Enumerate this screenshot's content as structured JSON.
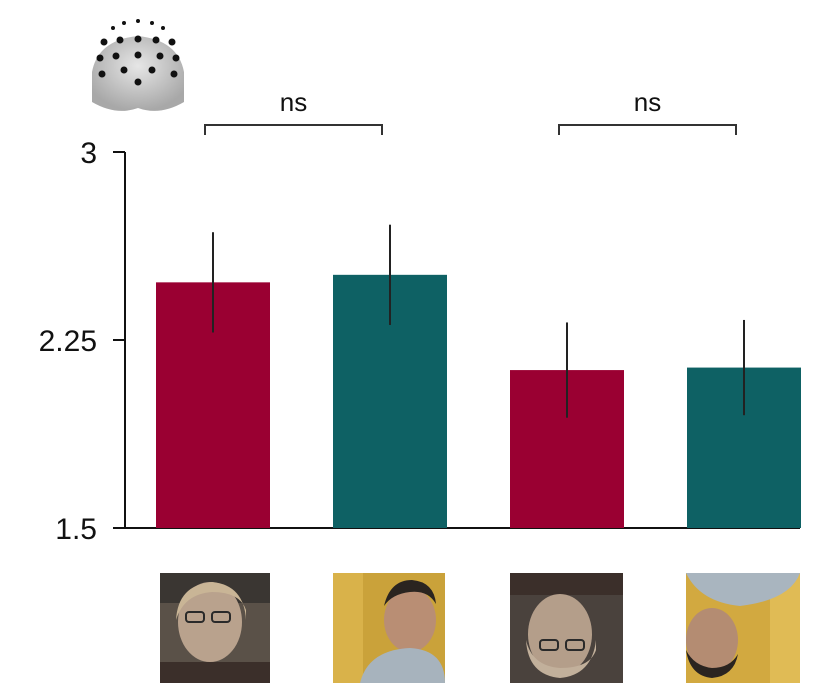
{
  "chart_data": {
    "type": "bar",
    "categories": [
      "upright face 1",
      "upright face 2",
      "inverted face 1",
      "inverted face 2"
    ],
    "values": [
      2.48,
      2.51,
      2.13,
      2.14
    ],
    "errors": [
      0.2,
      0.2,
      0.19,
      0.19
    ],
    "ylim": [
      1.5,
      3
    ],
    "yticks": [
      1.5,
      2.25,
      3
    ],
    "ytick_labels": [
      "1.5",
      "2.25",
      "3"
    ],
    "bar_colors": [
      "#9a0032",
      "#0e6164",
      "#9a0032",
      "#0e6164"
    ],
    "error_bar_color": "#222222",
    "comparisons": [
      {
        "bars": [
          0,
          1
        ],
        "label": "ns"
      },
      {
        "bars": [
          2,
          3
        ],
        "label": "ns"
      }
    ],
    "grid": false,
    "legend": "none",
    "icons": {
      "header": "eeg-electrode-head-icon",
      "category_images": [
        "upright-face-woman-photo-icon",
        "upright-face-man-photo-icon",
        "inverted-face-woman-photo-icon",
        "inverted-face-man-photo-icon"
      ]
    }
  }
}
